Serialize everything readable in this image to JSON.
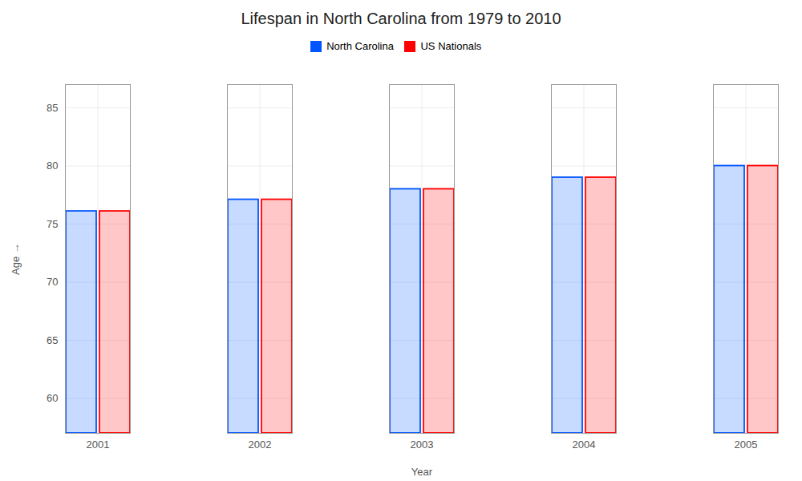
{
  "chart_data": {
    "type": "bar",
    "title": "Lifespan in North Carolina from 1979 to 2010",
    "xlabel": "Year",
    "ylabel": "Age",
    "categories": [
      "2001",
      "2002",
      "2003",
      "2004",
      "2005"
    ],
    "series": [
      {
        "name": "North Carolina",
        "color": "#0055ff",
        "values": [
          76.1,
          77.1,
          78.0,
          79.0,
          80.0
        ]
      },
      {
        "name": "US Nationals",
        "color": "#ff0000",
        "values": [
          76.1,
          77.1,
          78.0,
          79.0,
          80.0
        ]
      }
    ],
    "ylim": [
      57,
      87
    ],
    "yticks": [
      60,
      65,
      70,
      75,
      80,
      85
    ],
    "grid": true,
    "legend": "top"
  }
}
